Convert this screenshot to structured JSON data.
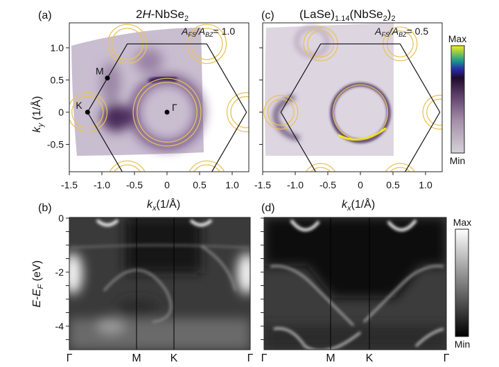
{
  "colors": {
    "fs_background_a": "#c8bccf",
    "fs_background_c": "#ddd6e1",
    "fs_intensity_dark": "#3b1a4f",
    "calc_contour": "#e8c35a",
    "bz_line": "#111111",
    "colormap_fs": [
      "#d2cdd4",
      "#a890ad",
      "#5a3a66",
      "#1e0b2c",
      "#2a2aa8",
      "#1b9a8c",
      "#f2ee1a"
    ],
    "colormap_bands": [
      "#000000",
      "#ffffff"
    ]
  },
  "chart_data": [
    {
      "panel": "(a)",
      "type": "heatmap",
      "title": "2H-NbSe2",
      "annotation": "A_FS/A_BZ = 1.0",
      "annotation_value": 1.0,
      "xlabel": "kx(1/Å)",
      "ylabel": "ky (1/Å)",
      "xlim": [
        -1.5,
        1.25
      ],
      "ylim": [
        -0.93,
        1.37
      ],
      "xticks": [
        -1.5,
        -1.0,
        -0.5,
        0,
        0.5,
        1.0
      ],
      "xtick_labels": [
        "-1.5",
        "-1.0",
        "-0.5",
        "0",
        "0.5",
        "1.0"
      ],
      "yticks": [
        -0.5,
        0,
        0.5,
        1.0
      ],
      "ytick_labels": [
        "-0.5",
        "0",
        "0.5",
        "1.0"
      ],
      "points": [
        {
          "label": "M",
          "kx": -0.915,
          "ky": 0.53
        },
        {
          "label": "K",
          "kx": -1.22,
          "ky": 0
        },
        {
          "label": "Γ",
          "kx": 0,
          "ky": 0
        }
      ]
    },
    {
      "panel": "(c)",
      "type": "heatmap",
      "title": "(LaSe)1.14(NbSe2)2",
      "annotation": "A_FS/A_BZ = 0.5",
      "annotation_value": 0.5,
      "xlabel": "kx(1/Å)",
      "xlim": [
        -1.5,
        1.25
      ],
      "ylim": [
        -0.93,
        1.37
      ],
      "xticks": [
        -1.5,
        -1.0,
        -0.5,
        0,
        0.5,
        1.0
      ],
      "xtick_labels": [
        "-1.5",
        "-1.0",
        "-0.5",
        "0",
        "0.5",
        "1.0"
      ],
      "yticks": [
        -0.5,
        0,
        0.5,
        1.0
      ],
      "colorbar": {
        "max_label": "Max",
        "min_label": "Min"
      }
    },
    {
      "panel": "(b)",
      "type": "heatmap",
      "ylabel": "E-EF (eV)",
      "ylim": [
        -4.8,
        0
      ],
      "yticks": [
        0,
        -0.5,
        -1,
        -1.5,
        -2,
        -2.5,
        -3,
        -3.5,
        -4,
        -4.5
      ],
      "ytick_labels": [
        "0",
        "-2",
        "-4"
      ],
      "ytick_labeled_values": [
        0,
        -2,
        -4
      ],
      "path_labels": [
        "Γ",
        "M",
        "K",
        "Γ"
      ]
    },
    {
      "panel": "(d)",
      "type": "heatmap",
      "ylim": [
        -4.8,
        0
      ],
      "yticks": [
        0,
        -0.5,
        -1,
        -1.5,
        -2,
        -2.5,
        -3,
        -3.5,
        -4,
        -4.5
      ],
      "path_labels": [
        "Γ",
        "M",
        "K",
        "Γ"
      ],
      "colorbar": {
        "max_label": "Max",
        "min_label": "Min"
      }
    }
  ],
  "labels": {
    "a": "(a)",
    "b": "(b)",
    "c": "(c)",
    "d": "(d)",
    "title_a_pre": "2",
    "title_a_it": "H",
    "title_a_post": "-NbSe",
    "title_a_sub": "2",
    "title_c_1": "(LaSe)",
    "title_c_sub1": "1.14",
    "title_c_2": "(NbSe",
    "title_c_sub2": "2",
    "title_c_3": ")",
    "ratio_A": "A",
    "ratio_FS": "FS",
    "ratio_slash": "/A",
    "ratio_BZ": "BZ",
    "ratio_a_val": "= 1.0",
    "ratio_c_val": "= 0.5",
    "k": "k",
    "kx_sub": "x",
    "ky_sub": "y",
    "k_unit": "(1/Å)",
    "ky_unit": " (1/Å)",
    "e_label_pre": "E-E",
    "e_label_sub": "F",
    "e_label_unit": " (eV)"
  }
}
